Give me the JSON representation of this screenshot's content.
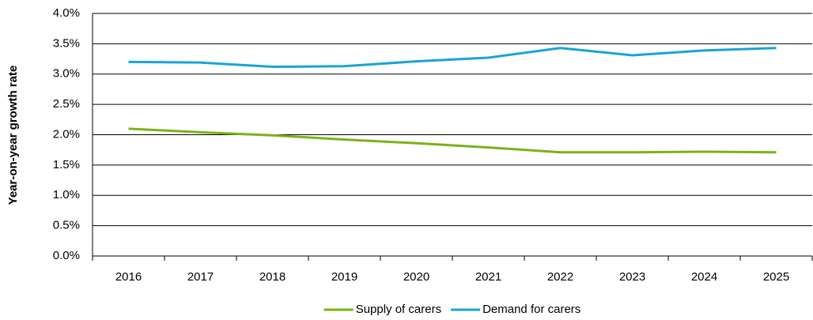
{
  "chart_data": {
    "type": "line",
    "y_label": "Year-on-year growth rate",
    "categories": [
      "2016",
      "2017",
      "2018",
      "2019",
      "2020",
      "2021",
      "2022",
      "2023",
      "2024",
      "2025"
    ],
    "series": [
      {
        "name": "Supply of carers",
        "color": "#7ab317",
        "values": [
          2.1,
          2.04,
          1.99,
          1.92,
          1.86,
          1.79,
          1.71,
          1.71,
          1.72,
          1.71
        ]
      },
      {
        "name": "Demand for carers",
        "color": "#1aa3d9",
        "values": [
          3.2,
          3.19,
          3.12,
          3.13,
          3.21,
          3.27,
          3.43,
          3.31,
          3.39,
          3.43
        ]
      }
    ],
    "ylim": [
      0,
      4
    ],
    "yticks": [
      {
        "value": 0,
        "label": "0.0%"
      },
      {
        "value": 0.5,
        "label": "0.5%"
      },
      {
        "value": 1,
        "label": "1.0%"
      },
      {
        "value": 1.5,
        "label": "1.5%"
      },
      {
        "value": 2,
        "label": "2.0%"
      },
      {
        "value": 2.5,
        "label": "2.5%"
      },
      {
        "value": 3,
        "label": "3.0%"
      },
      {
        "value": 3.5,
        "label": "3.5%"
      },
      {
        "value": 4,
        "label": "4.0%"
      }
    ],
    "grid": true,
    "legend": "bottom"
  }
}
